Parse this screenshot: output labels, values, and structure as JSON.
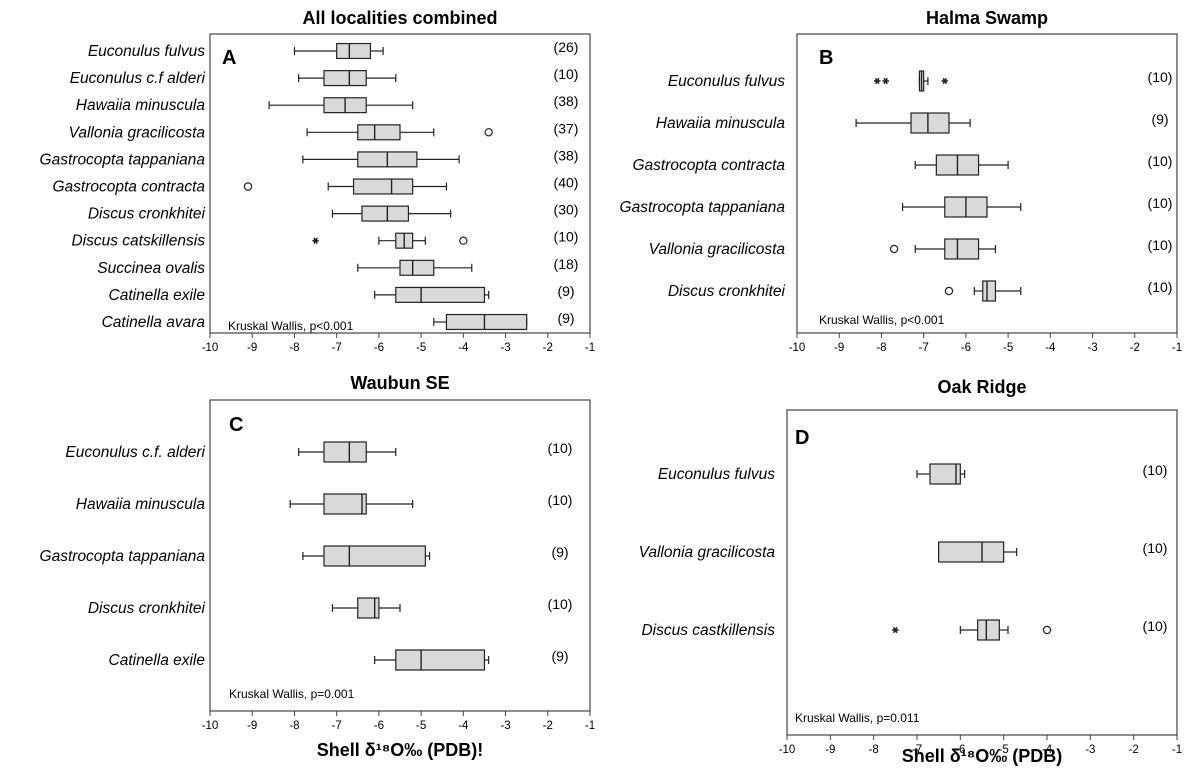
{
  "chart_data": [
    {
      "type": "boxplot",
      "panel": "A",
      "title": "All localities combined",
      "xlabel": "",
      "xlim": [
        -10,
        -1
      ],
      "xticks": [
        -10,
        -9,
        -8,
        -7,
        -6,
        -5,
        -4,
        -3,
        -2,
        -1
      ],
      "stat_text": "Kruskal Wallis, p<0.001",
      "series": [
        {
          "name": "Euconulus fulvus",
          "n": "(26)",
          "whisker_low": -8.0,
          "q1": -7.0,
          "median": -6.7,
          "q3": -6.2,
          "whisker_high": -5.9,
          "outliers": [],
          "extremes": []
        },
        {
          "name": "Euconulus c.f alderi",
          "n": "(10)",
          "whisker_low": -7.9,
          "q1": -7.3,
          "median": -6.7,
          "q3": -6.3,
          "whisker_high": -5.6,
          "outliers": [],
          "extremes": []
        },
        {
          "name": "Hawaiia minuscula",
          "n": "(38)",
          "whisker_low": -8.6,
          "q1": -7.3,
          "median": -6.8,
          "q3": -6.3,
          "whisker_high": -5.2,
          "outliers": [],
          "extremes": []
        },
        {
          "name": "Vallonia gracilicosta",
          "n": "(37)",
          "whisker_low": -7.7,
          "q1": -6.5,
          "median": -6.1,
          "q3": -5.5,
          "whisker_high": -4.7,
          "outliers": [
            -3.4
          ],
          "extremes": []
        },
        {
          "name": "Gastrocopta tappaniana",
          "n": "(38)",
          "whisker_low": -7.8,
          "q1": -6.5,
          "median": -5.8,
          "q3": -5.1,
          "whisker_high": -4.1,
          "outliers": [],
          "extremes": []
        },
        {
          "name": "Gastrocopta contracta",
          "n": "(40)",
          "whisker_low": -7.2,
          "q1": -6.6,
          "median": -5.7,
          "q3": -5.2,
          "whisker_high": -4.4,
          "outliers": [
            -9.1
          ],
          "extremes": []
        },
        {
          "name": "Discus cronkhitei",
          "n": "(30)",
          "whisker_low": -7.1,
          "q1": -6.4,
          "median": -5.8,
          "q3": -5.3,
          "whisker_high": -4.3,
          "outliers": [],
          "extremes": []
        },
        {
          "name": "Discus catskillensis",
          "n": "(10)",
          "whisker_low": -6.0,
          "q1": -5.6,
          "median": -5.4,
          "q3": -5.2,
          "whisker_high": -4.9,
          "outliers": [
            -4.0
          ],
          "extremes": [
            -7.5
          ]
        },
        {
          "name": "Succinea ovalis",
          "n": "(18)",
          "whisker_low": -6.5,
          "q1": -5.5,
          "median": -5.2,
          "q3": -4.7,
          "whisker_high": -3.8,
          "outliers": [],
          "extremes": []
        },
        {
          "name": "Catinella exile",
          "n": "(9)",
          "whisker_low": -6.1,
          "q1": -5.6,
          "median": -5.0,
          "q3": -3.5,
          "whisker_high": -3.4,
          "outliers": [],
          "extremes": []
        },
        {
          "name": "Catinella avara",
          "n": "(9)",
          "whisker_low": -4.7,
          "q1": -4.4,
          "median": -3.5,
          "q3": -2.5,
          "whisker_high": -2.5,
          "outliers": [],
          "extremes": []
        }
      ]
    },
    {
      "type": "boxplot",
      "panel": "B",
      "title": "Halma Swamp",
      "xlabel": "",
      "xlim": [
        -10,
        -1
      ],
      "xticks": [
        -10,
        -9,
        -8,
        -7,
        -6,
        -5,
        -4,
        -3,
        -2,
        -1
      ],
      "stat_text": "Kruskal Wallis, p<0.001",
      "series": [
        {
          "name": "Euconulus fulvus",
          "n": "(10)",
          "whisker_low": -7.1,
          "q1": -7.1,
          "median": -7.05,
          "q3": -7.0,
          "whisker_high": -6.9,
          "outliers": [],
          "extremes": [
            -8.1,
            -7.9,
            -6.5
          ]
        },
        {
          "name": "Hawaiia minuscula",
          "n": "(9)",
          "whisker_low": -8.6,
          "q1": -7.3,
          "median": -6.9,
          "q3": -6.4,
          "whisker_high": -5.9,
          "outliers": [],
          "extremes": []
        },
        {
          "name": "Gastrocopta contracta",
          "n": "(10)",
          "whisker_low": -7.2,
          "q1": -6.7,
          "median": -6.2,
          "q3": -5.7,
          "whisker_high": -5.0,
          "outliers": [],
          "extremes": []
        },
        {
          "name": "Gastrocopta tappaniana",
          "n": "(10)",
          "whisker_low": -7.5,
          "q1": -6.5,
          "median": -6.0,
          "q3": -5.5,
          "whisker_high": -4.7,
          "outliers": [],
          "extremes": []
        },
        {
          "name": "Vallonia gracilicosta",
          "n": "(10)",
          "whisker_low": -7.2,
          "q1": -6.5,
          "median": -6.2,
          "q3": -5.7,
          "whisker_high": -5.3,
          "outliers": [
            -7.7
          ],
          "extremes": []
        },
        {
          "name": "Discus cronkhitei",
          "n": "(10)",
          "whisker_low": -5.8,
          "q1": -5.6,
          "median": -5.5,
          "q3": -5.3,
          "whisker_high": -4.7,
          "outliers": [
            -6.4
          ],
          "extremes": []
        }
      ]
    },
    {
      "type": "boxplot",
      "panel": "C",
      "title": "Waubun SE",
      "xlabel": "Shell δ¹⁸O‰ (PDB)!",
      "xlim": [
        -10,
        -1
      ],
      "xticks": [
        -10,
        -9,
        -8,
        -7,
        -6,
        -5,
        -4,
        -3,
        -2,
        -1
      ],
      "stat_text": "Kruskal Wallis, p=0.001",
      "series": [
        {
          "name": "Euconulus c.f. alderi",
          "n": "(10)",
          "whisker_low": -7.9,
          "q1": -7.3,
          "median": -6.7,
          "q3": -6.3,
          "whisker_high": -5.6,
          "outliers": [],
          "extremes": []
        },
        {
          "name": "Hawaiia minuscula",
          "n": "(10)",
          "whisker_low": -8.1,
          "q1": -7.3,
          "median": -6.4,
          "q3": -6.3,
          "whisker_high": -5.2,
          "outliers": [],
          "extremes": []
        },
        {
          "name": "Gastrocopta tappaniana",
          "n": "(9)",
          "whisker_low": -7.8,
          "q1": -7.3,
          "median": -6.7,
          "q3": -4.9,
          "whisker_high": -4.8,
          "outliers": [],
          "extremes": []
        },
        {
          "name": "Discus cronkhitei",
          "n": "(10)",
          "whisker_low": -7.1,
          "q1": -6.5,
          "median": -6.1,
          "q3": -6.0,
          "whisker_high": -5.5,
          "outliers": [],
          "extremes": []
        },
        {
          "name": "Catinella exile",
          "n": "(9)",
          "whisker_low": -6.1,
          "q1": -5.6,
          "median": -5.0,
          "q3": -3.5,
          "whisker_high": -3.4,
          "outliers": [],
          "extremes": []
        }
      ]
    },
    {
      "type": "boxplot",
      "panel": "D",
      "title": "Oak Ridge",
      "xlabel": "Shell δ¹⁸O‰ (PDB)",
      "xlim": [
        -10,
        -1
      ],
      "xticks": [
        -10,
        -9,
        -8,
        -7,
        -6,
        -5,
        -4,
        -3,
        -2,
        -1
      ],
      "stat_text": "Kruskal Wallis, p=0.011",
      "series": [
        {
          "name": "Euconulus fulvus",
          "n": "(10)",
          "whisker_low": -7.0,
          "q1": -6.7,
          "median": -6.1,
          "q3": -6.0,
          "whisker_high": -5.9,
          "outliers": [],
          "extremes": []
        },
        {
          "name": "Vallonia gracilicosta",
          "n": "(10)",
          "whisker_low": -6.5,
          "q1": -6.5,
          "median": -5.5,
          "q3": -5.0,
          "whisker_high": -4.7,
          "outliers": [],
          "extremes": []
        },
        {
          "name": "Discus castkillensis",
          "n": "(10)",
          "whisker_low": -6.0,
          "q1": -5.6,
          "median": -5.4,
          "q3": -5.1,
          "whisker_high": -4.9,
          "outliers": [
            -4.0
          ],
          "extremes": [
            -7.5
          ]
        }
      ]
    }
  ],
  "colors": {
    "box_fill": "#d9d9d9",
    "stroke": "#222222",
    "frame": "#444444",
    "text": "#000000"
  }
}
